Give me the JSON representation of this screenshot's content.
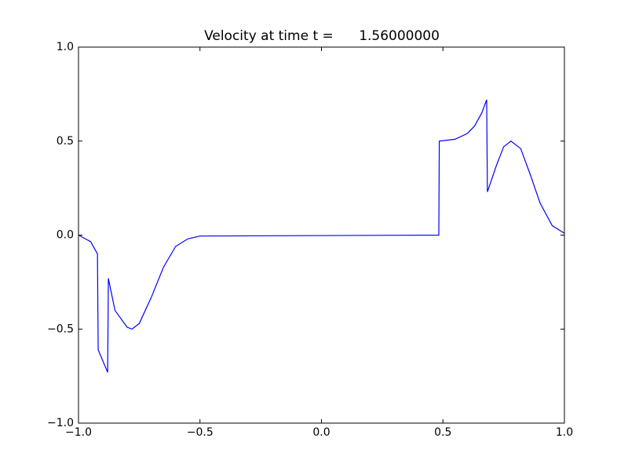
{
  "chart_data": {
    "type": "line",
    "title": "Velocity at time t =      1.56000000",
    "x": [
      -1.0,
      -0.95,
      -0.922,
      -0.919,
      -0.88,
      -0.877,
      -0.85,
      -0.8,
      -0.78,
      -0.75,
      -0.7,
      -0.65,
      -0.6,
      -0.55,
      -0.5,
      0.483,
      0.485,
      0.55,
      0.6,
      0.63,
      0.66,
      0.68,
      0.683,
      0.72,
      0.75,
      0.78,
      0.82,
      0.86,
      0.9,
      0.95,
      1.0
    ],
    "values": [
      0.0,
      -0.035,
      -0.1,
      -0.61,
      -0.73,
      -0.23,
      -0.4,
      -0.49,
      -0.5,
      -0.47,
      -0.33,
      -0.17,
      -0.06,
      -0.02,
      -0.005,
      0.0,
      0.5,
      0.51,
      0.54,
      0.58,
      0.65,
      0.72,
      0.23,
      0.37,
      0.47,
      0.5,
      0.46,
      0.32,
      0.17,
      0.05,
      0.01
    ],
    "color": "#0000ff",
    "xlim": [
      -1,
      1
    ],
    "ylim": [
      -1,
      1
    ],
    "xticks": [
      {
        "value": -1,
        "label": "−1.0"
      },
      {
        "value": -0.5,
        "label": "−0.5"
      },
      {
        "value": 0,
        "label": "0.0"
      },
      {
        "value": 0.5,
        "label": "0.5"
      },
      {
        "value": 1,
        "label": "1.0"
      }
    ],
    "yticks": [
      {
        "value": -1,
        "label": "−1.0"
      },
      {
        "value": -0.5,
        "label": "−0.5"
      },
      {
        "value": 0,
        "label": "0.0"
      },
      {
        "value": 0.5,
        "label": "0.5"
      },
      {
        "value": 1,
        "label": "1.0"
      }
    ],
    "grid": false
  }
}
